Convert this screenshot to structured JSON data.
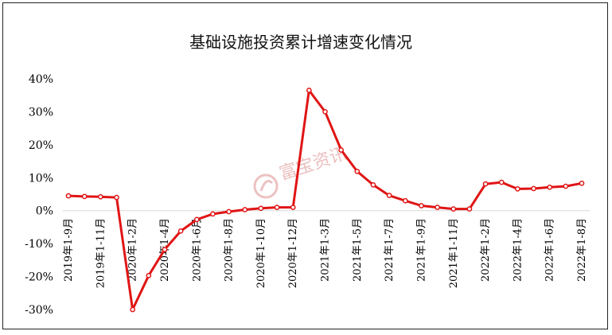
{
  "chart_data": {
    "type": "line",
    "title": "基础设施投资累计增速变化情况",
    "xlabel": "",
    "ylabel": "",
    "ylim": [
      -0.3,
      0.4
    ],
    "y_ticks": [
      "-30%",
      "-20%",
      "-10%",
      "0%",
      "10%",
      "20%",
      "30%",
      "40%"
    ],
    "y_tick_values": [
      -0.3,
      -0.2,
      -0.1,
      0,
      0.1,
      0.2,
      0.3,
      0.4
    ],
    "grid": false,
    "legend": "none",
    "x_tick_labels": [
      "2019年1-9月",
      "2019年1-11月",
      "2020年1-2月",
      "2020年1-4月",
      "2020年1-6月",
      "2020年1-8月",
      "2020年1-10月",
      "2020年1-12月",
      "2021年1-3月",
      "2021年1-5月",
      "2021年1-7月",
      "2021年1-9月",
      "2021年1-11月",
      "2022年1-2月",
      "2022年1-4月",
      "2022年1-6月",
      "2022年1-8月"
    ],
    "x_tick_indices": [
      0,
      2,
      4,
      6,
      8,
      10,
      12,
      14,
      16,
      18,
      20,
      22,
      24,
      26,
      28,
      30,
      32
    ],
    "series": [
      {
        "color": "#e01515",
        "values": [
          0.045,
          0.043,
          0.042,
          0.04,
          -0.3,
          -0.197,
          -0.118,
          -0.062,
          -0.027,
          -0.01,
          -0.003,
          0.003,
          0.007,
          0.01,
          0.01,
          0.365,
          0.3,
          0.184,
          0.119,
          0.078,
          0.046,
          0.03,
          0.015,
          0.01,
          0.005,
          0.005,
          0.081,
          0.086,
          0.066,
          0.067,
          0.071,
          0.074,
          0.083
        ]
      }
    ]
  },
  "watermark": {
    "text": "富宝资讯"
  }
}
